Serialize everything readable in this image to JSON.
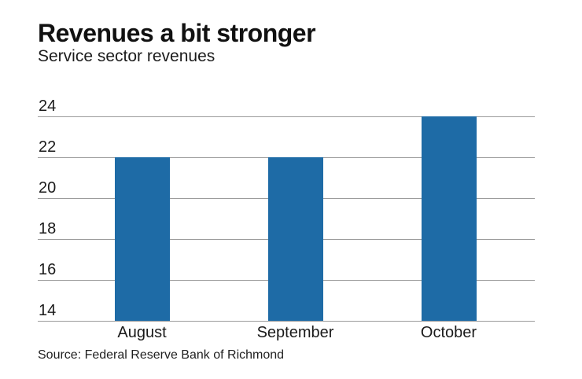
{
  "header": {
    "title": "Revenues a bit stronger",
    "subtitle": "Service sector revenues"
  },
  "footer": {
    "source": "Source: Federal Reserve Bank of Richmond"
  },
  "colors": {
    "bar": "#1e6ba6",
    "gridline": "#9b9b9b",
    "text": "#1a1a1a"
  },
  "chart_data": {
    "type": "bar",
    "title": "Revenues a bit stronger",
    "subtitle": "Service sector revenues",
    "categories": [
      "August",
      "September",
      "October"
    ],
    "values": [
      22,
      22,
      24
    ],
    "ylim": [
      14,
      24
    ],
    "yticks": [
      24,
      22,
      20,
      18,
      16,
      14
    ],
    "xlabel": "",
    "ylabel": "",
    "grid": true,
    "legend": "none",
    "bar_color": "#1e6ba6",
    "source": "Source: Federal Reserve Bank of Richmond"
  }
}
